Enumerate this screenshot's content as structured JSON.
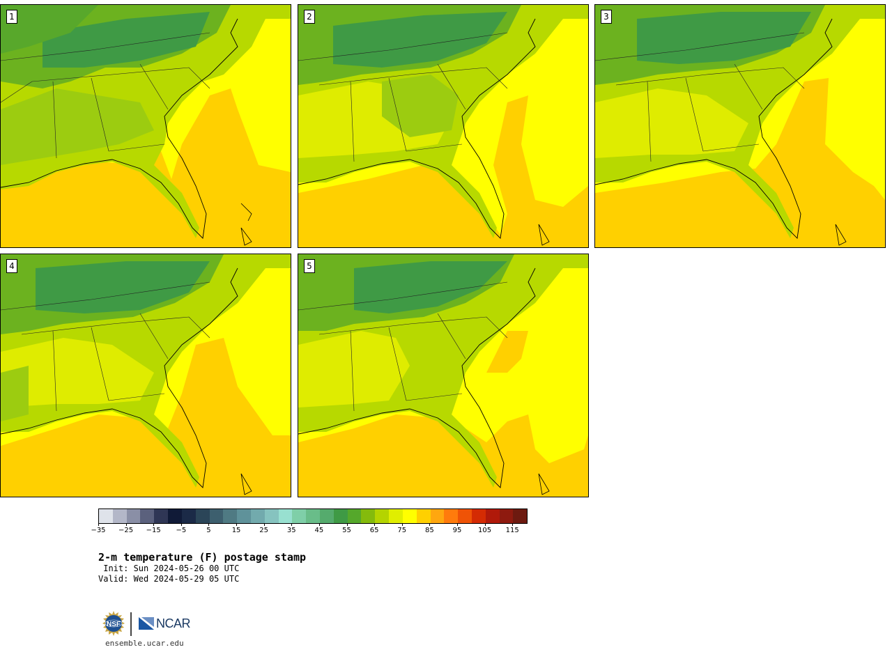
{
  "panels": [
    {
      "label": "1"
    },
    {
      "label": "2"
    },
    {
      "label": "3"
    },
    {
      "label": "4"
    },
    {
      "label": "5"
    }
  ],
  "colorbar": {
    "colors": [
      "#dfe3ea",
      "#b3b7c8",
      "#8a8fa6",
      "#5b617d",
      "#2f3655",
      "#101a37",
      "#1b2a47",
      "#2b4558",
      "#3d5f6e",
      "#4f7a83",
      "#5f929a",
      "#72aaad",
      "#86c3bf",
      "#98e0d0",
      "#7fcfa8",
      "#69bd89",
      "#55ab6d",
      "#3f9a45",
      "#55a82b",
      "#84bb0c",
      "#b4d400",
      "#e0ee00",
      "#ffff00",
      "#ffd000",
      "#ffa70f",
      "#ff7b0c",
      "#ef5306",
      "#d42b03",
      "#b0190a",
      "#8e1a0f",
      "#6d1a10"
    ],
    "tick_labels": [
      "−35",
      "−25",
      "−15",
      "−5",
      "5",
      "15",
      "25",
      "35",
      "45",
      "55",
      "65",
      "75",
      "85",
      "95",
      "105",
      "115"
    ]
  },
  "title": "2-m temperature (F) postage stamp",
  "init_text": " Init: Sun 2024-05-26 00 UTC",
  "valid_text": "Valid: Wed 2024-05-29 05 UTC",
  "footer": {
    "ncar_text": "NCAR",
    "url": "ensemble.ucar.edu"
  }
}
